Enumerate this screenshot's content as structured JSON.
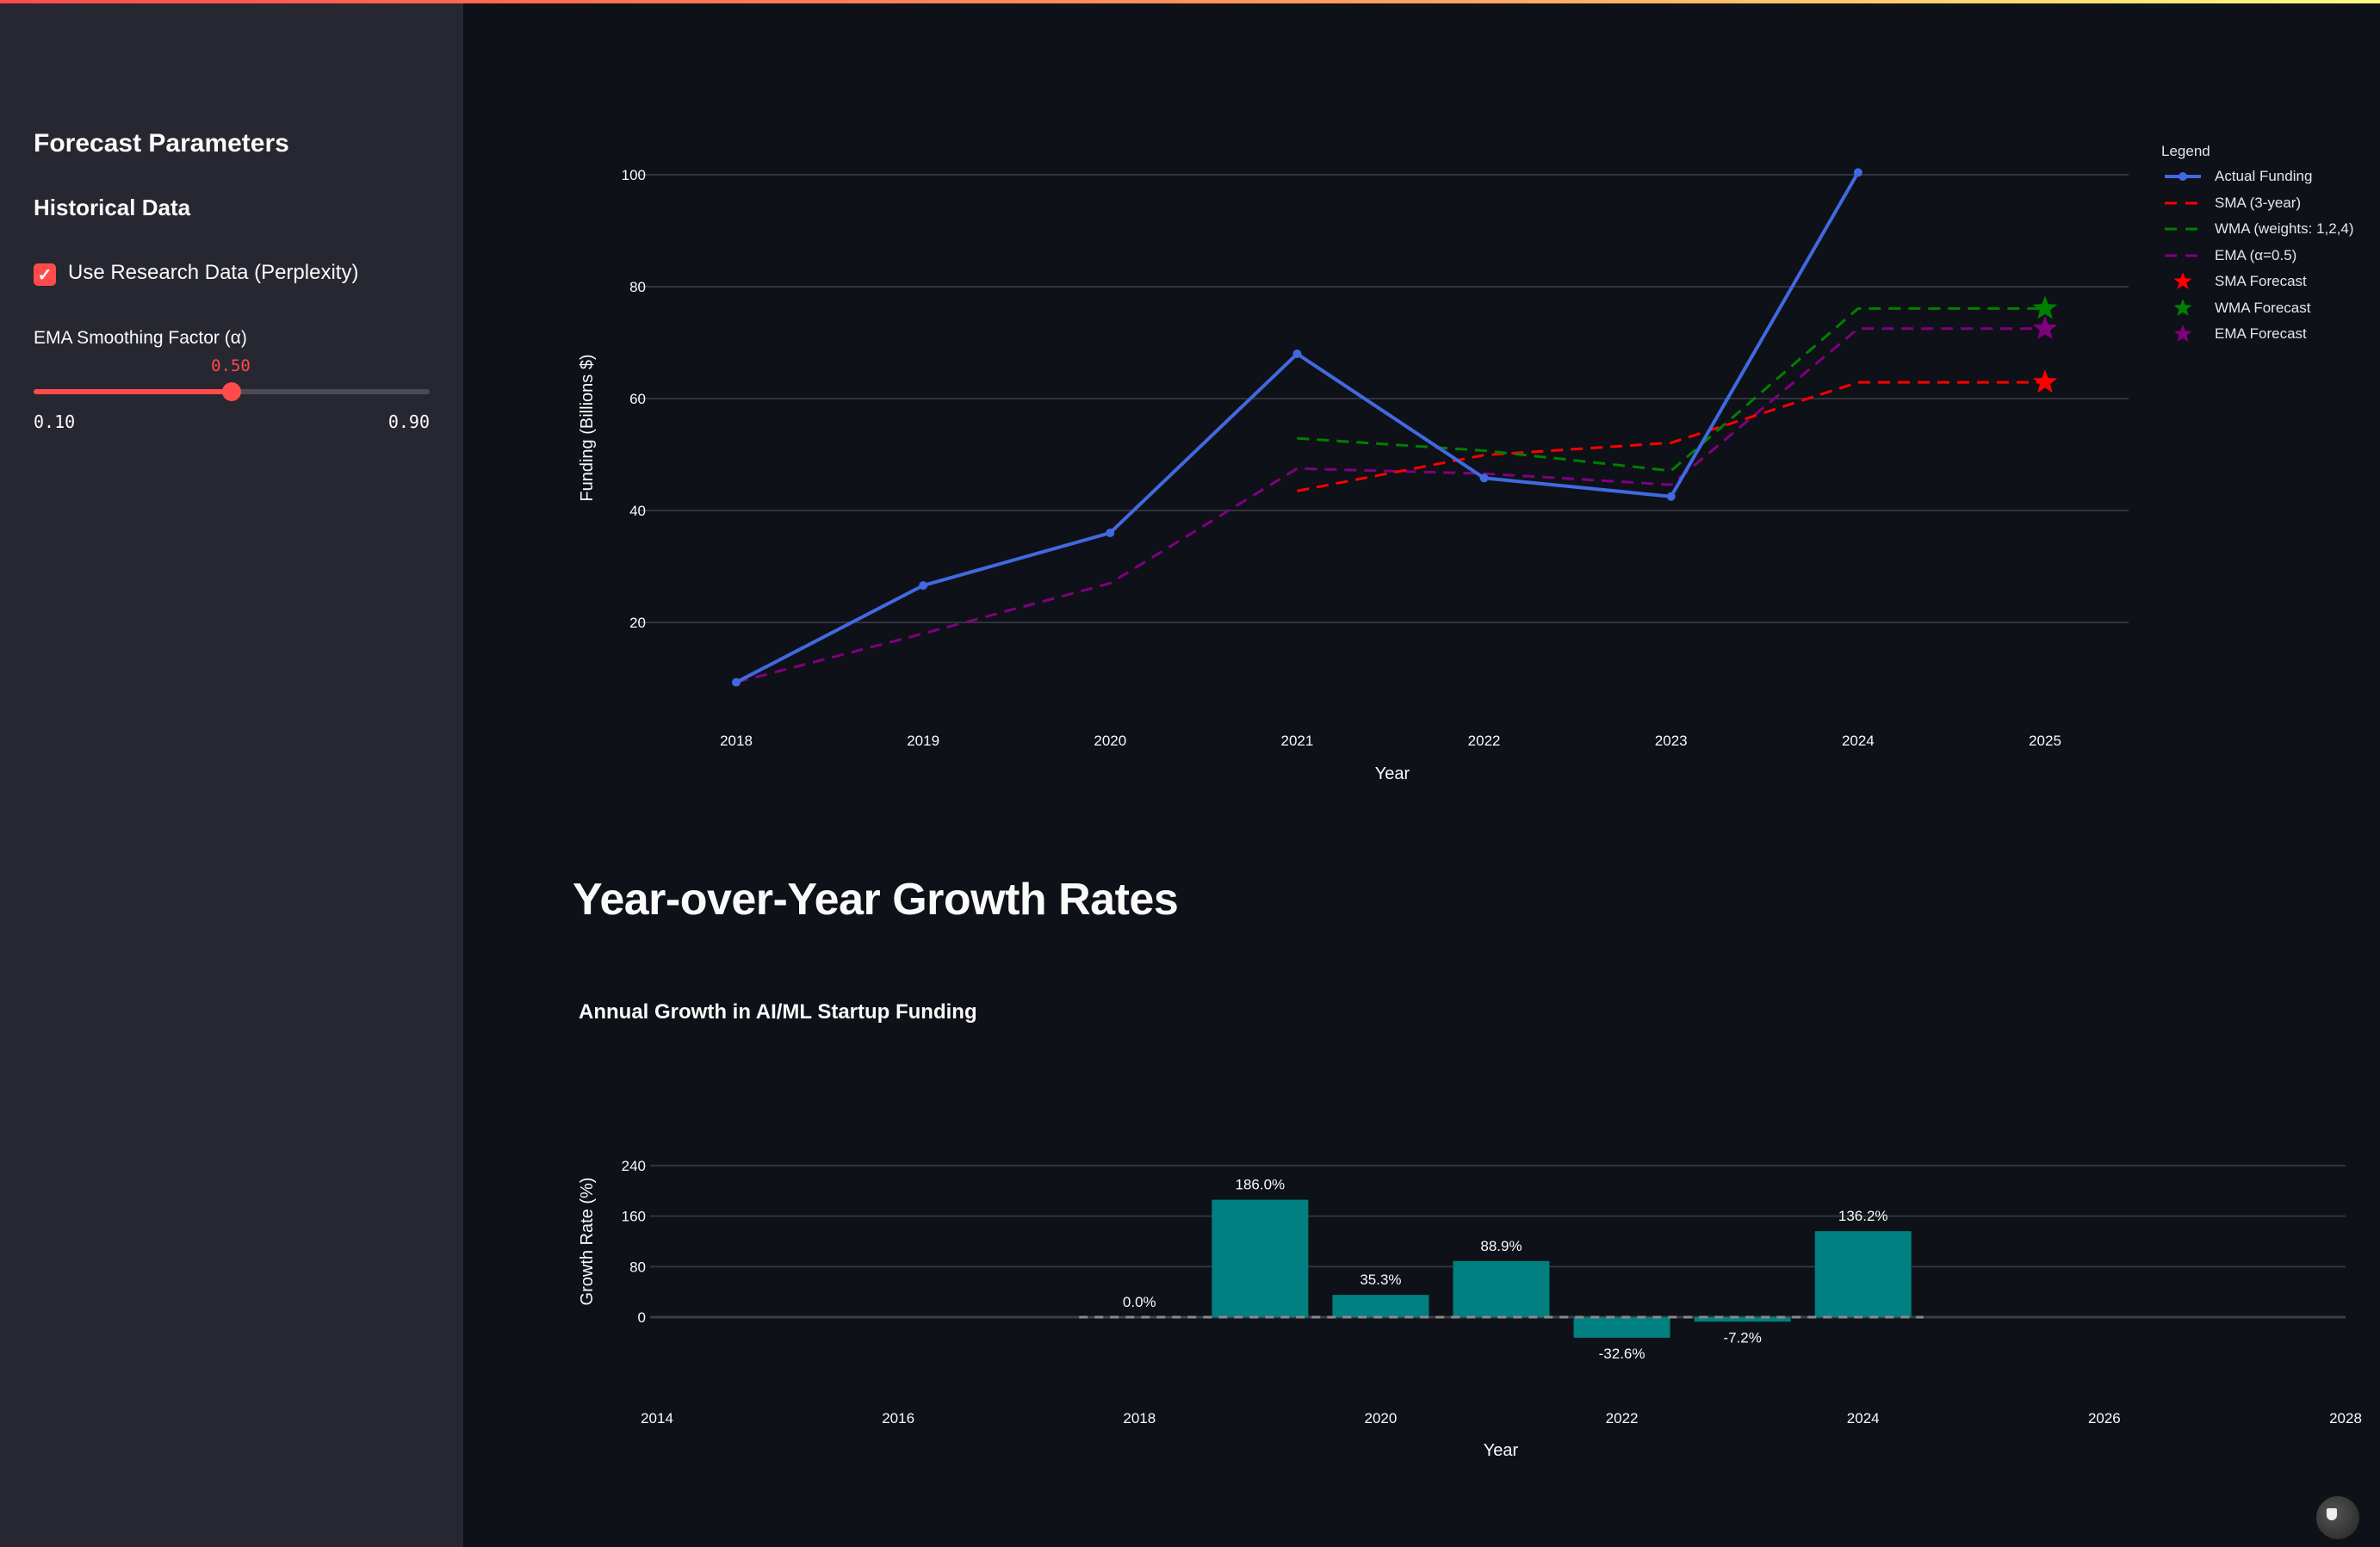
{
  "sidebar": {
    "title": "Forecast Parameters",
    "subtitle": "Historical Data",
    "checkbox": {
      "label": "Use Research Data (Perplexity)",
      "checked": true,
      "check_glyph": "✓"
    },
    "slider": {
      "label": "EMA Smoothing Factor (α)",
      "value": "0.50",
      "min": "0.10",
      "max": "0.90",
      "fraction": 0.5
    },
    "accent": "#ff4b4b"
  },
  "main": {
    "growth_heading": "Year-over-Year Growth Rates"
  },
  "chart_data": [
    {
      "type": "line",
      "title": "",
      "xlabel": "Year",
      "ylabel": "Funding (Billions $)",
      "x_ticks": [
        "2018",
        "2019",
        "2020",
        "2021",
        "2022",
        "2023",
        "2024",
        "2025"
      ],
      "y_ticks": [
        20,
        40,
        60,
        80,
        100
      ],
      "ylim": [
        5,
        102
      ],
      "grid": true,
      "legend_title": "Legend",
      "legend_position": "right",
      "series": [
        {
          "name": "Actual Funding",
          "color": "#4169e1",
          "style": "solid-markers",
          "x": [
            2018,
            2019,
            2020,
            2021,
            2022,
            2023,
            2024
          ],
          "y": [
            9.3,
            26.6,
            36.0,
            68.0,
            45.8,
            42.5,
            100.4
          ]
        },
        {
          "name": "SMA (3-year)",
          "color": "#ff0000",
          "style": "dash",
          "x": [
            2021,
            2022,
            2023,
            2024,
            2025
          ],
          "y": [
            43.5,
            49.9,
            52.1,
            62.9,
            62.9
          ]
        },
        {
          "name": "WMA (weights: 1,2,4)",
          "color": "#008000",
          "style": "dash",
          "x": [
            2021,
            2022,
            2023,
            2024,
            2025
          ],
          "y": [
            52.9,
            50.7,
            47.1,
            76.1,
            76.1
          ]
        },
        {
          "name": "EMA (α=0.5)",
          "color": "#800080",
          "style": "dash",
          "x": [
            2018,
            2019,
            2020,
            2021,
            2022,
            2023,
            2024,
            2025
          ],
          "y": [
            9.3,
            18.0,
            27.0,
            47.5,
            46.6,
            44.6,
            72.5,
            72.5
          ]
        },
        {
          "name": "SMA Forecast",
          "color": "#ff0000",
          "style": "star",
          "x": [
            2025
          ],
          "y": [
            62.9
          ]
        },
        {
          "name": "WMA Forecast",
          "color": "#008000",
          "style": "star",
          "x": [
            2025
          ],
          "y": [
            76.1
          ]
        },
        {
          "name": "EMA Forecast",
          "color": "#800080",
          "style": "star",
          "x": [
            2025
          ],
          "y": [
            72.5
          ]
        }
      ]
    },
    {
      "type": "bar",
      "title": "Annual Growth in AI/ML Startup Funding",
      "xlabel": "Year",
      "ylabel": "Growth Rate (%)",
      "categories": [
        2018,
        2019,
        2020,
        2021,
        2022,
        2023,
        2024
      ],
      "values": [
        0.0,
        186.0,
        35.3,
        88.9,
        -32.6,
        -7.2,
        136.2
      ],
      "labels": [
        "0.0%",
        "186.0%",
        "35.3%",
        "88.9%",
        "-32.6%",
        "-7.2%",
        "136.2%"
      ],
      "color": "#008080",
      "x_ticks": [
        2014,
        2016,
        2018,
        2020,
        2022,
        2024,
        2026,
        2028
      ],
      "y_ticks": [
        0,
        80,
        160,
        240
      ],
      "xlim": [
        2014,
        2028
      ],
      "ylim": [
        -60,
        240
      ],
      "grid": true,
      "zero_line": "dashed"
    }
  ]
}
